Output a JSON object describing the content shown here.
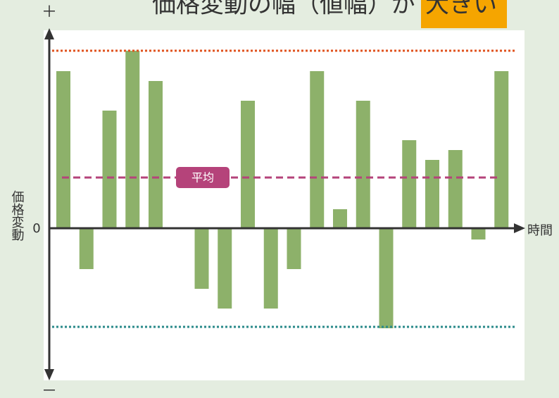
{
  "chart_data": {
    "type": "bar",
    "title": "価格変動の幅（値幅）が",
    "title_highlight": "大きい",
    "y_top_label": "＋",
    "y_bottom_label": "－",
    "y_axis_label": "価格変動",
    "x_axis_label": "時間",
    "zero_label": "0",
    "values": [
      223,
      -58,
      167,
      252,
      209,
      0,
      -86,
      -114,
      181,
      -114,
      -58,
      223,
      27,
      181,
      -142,
      125,
      97,
      111,
      -16,
      223
    ],
    "color": "#8db16a",
    "ylim": [
      -206,
      279
    ],
    "reference_lines": [
      {
        "value": 252,
        "color": "#e0531f"
      },
      {
        "value": 72,
        "label": "平均",
        "color": "#b5437a"
      },
      {
        "value": -140,
        "color": "#2a8a8a"
      }
    ]
  }
}
